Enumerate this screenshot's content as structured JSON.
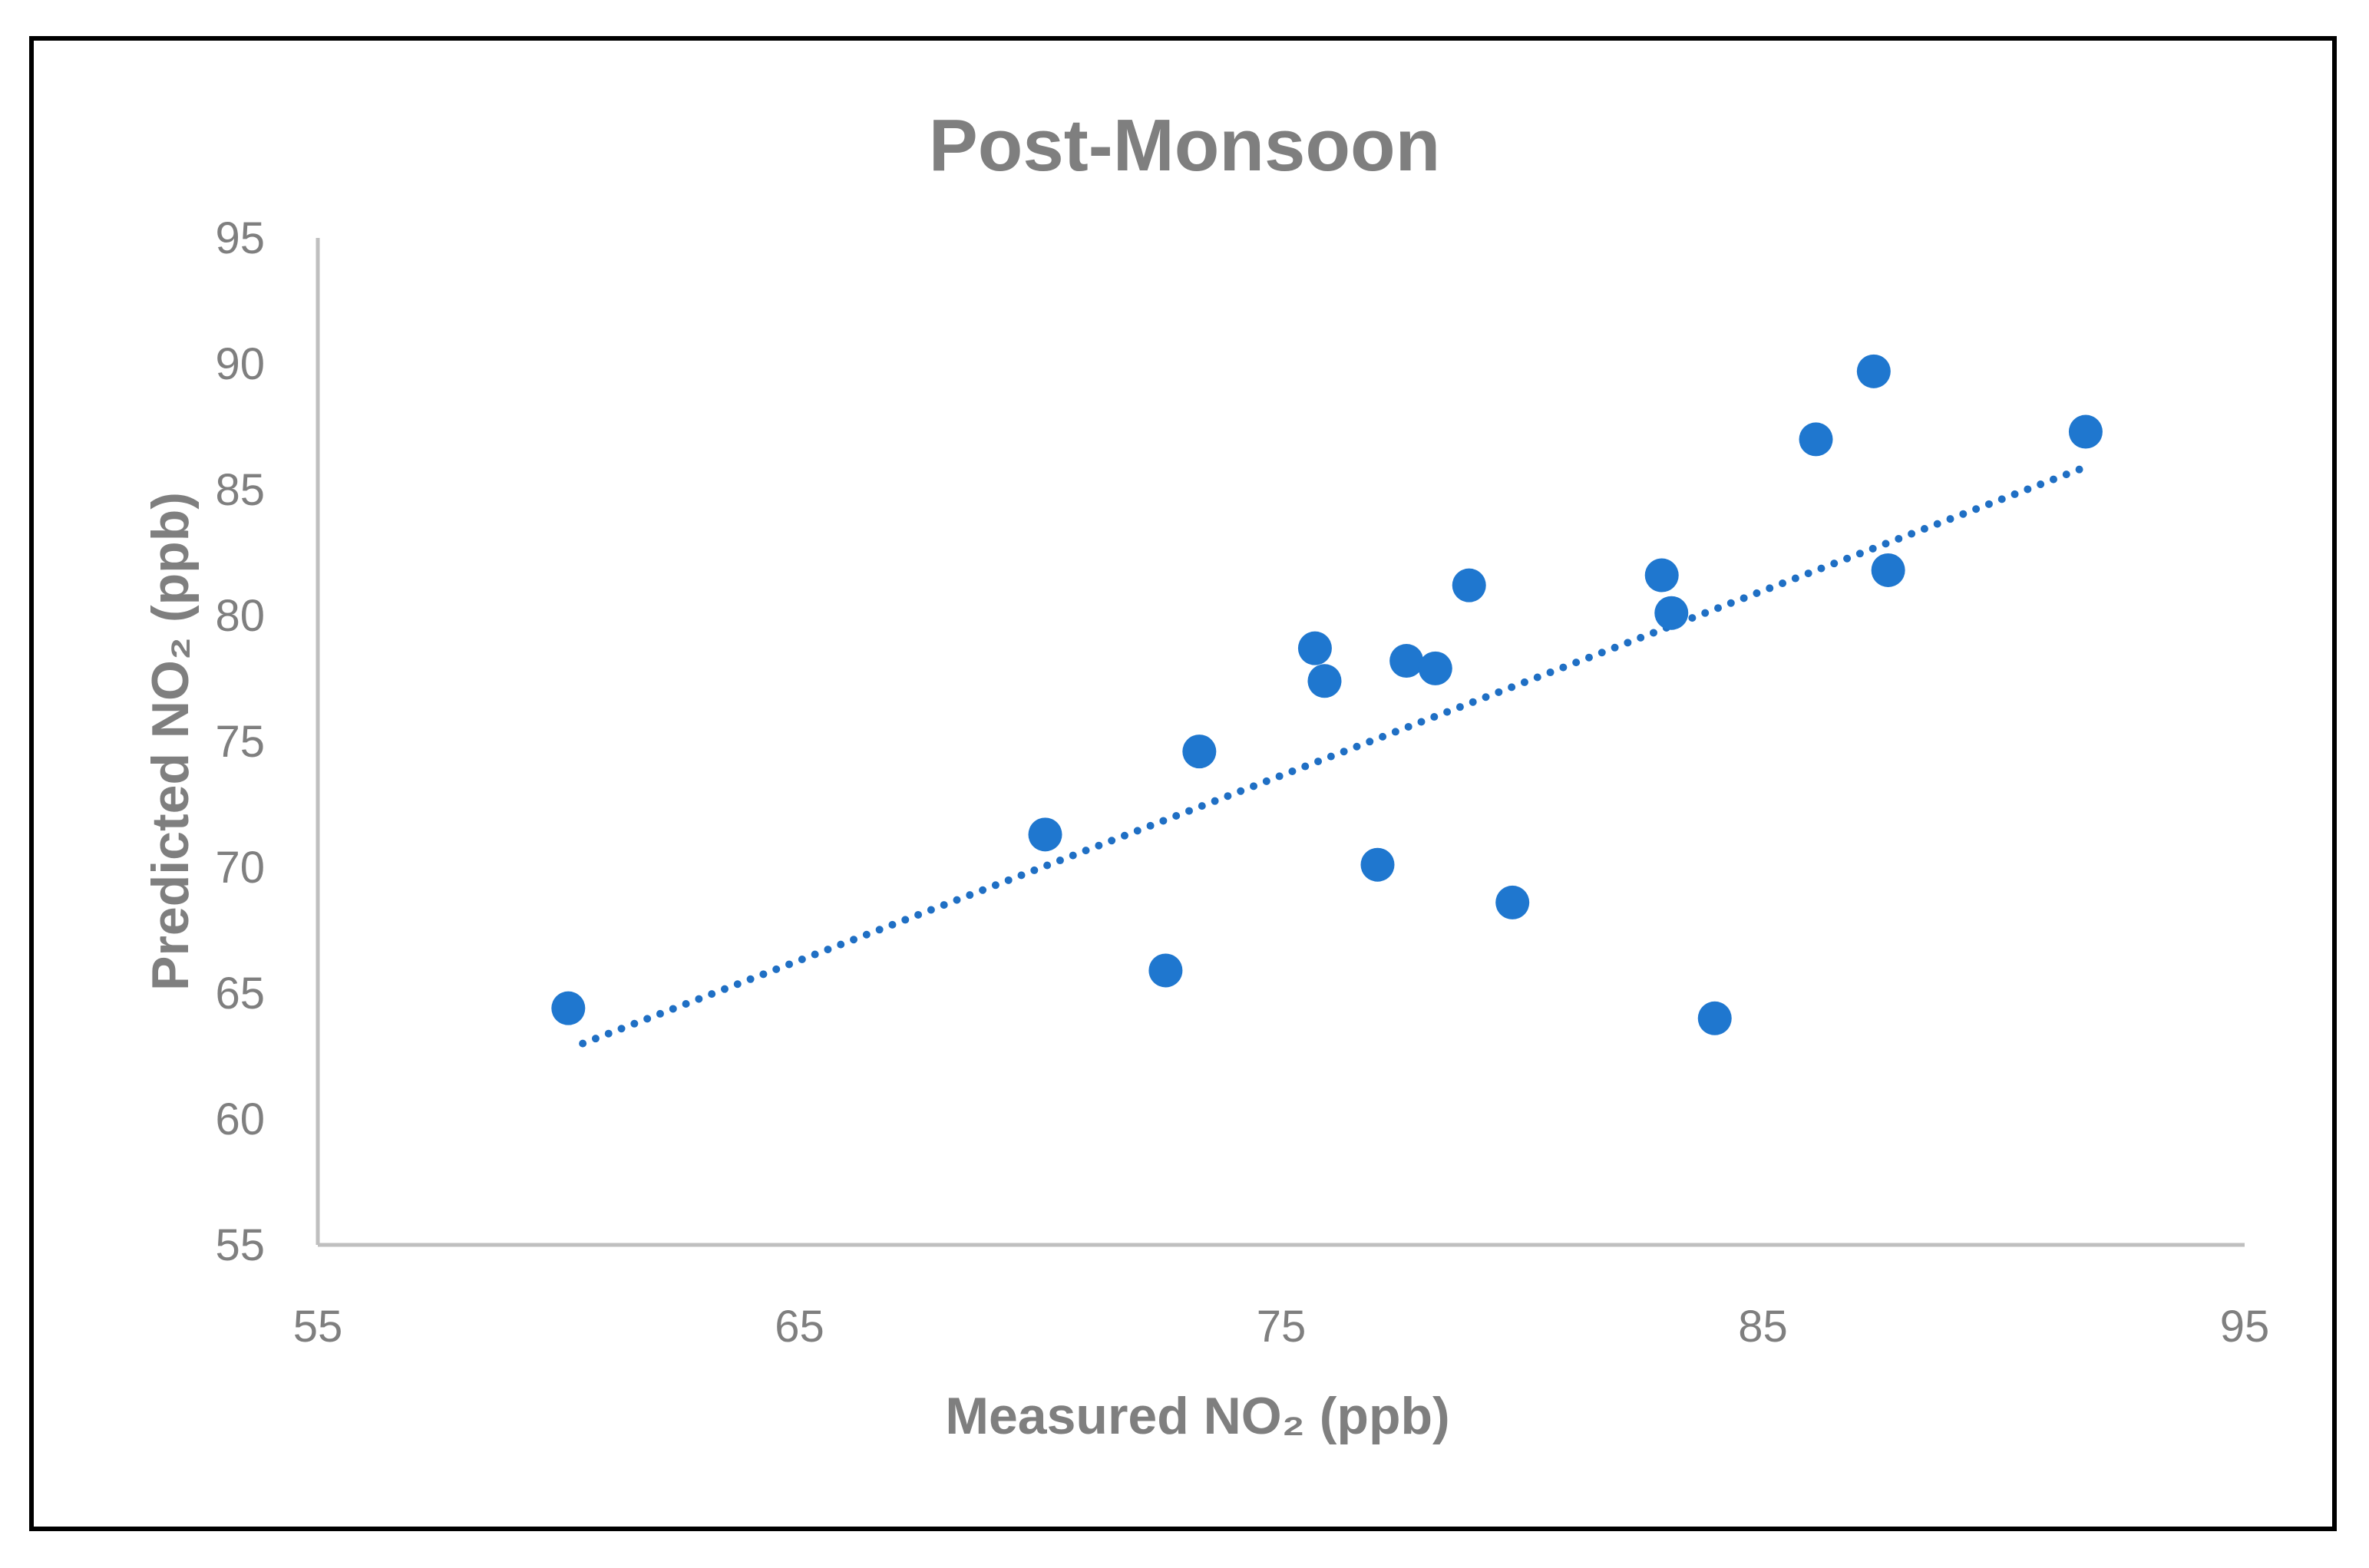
{
  "chart_data": {
    "type": "scatter",
    "title": "Post-Monsoon",
    "xlabel": "Measured NO₂ (ppb)",
    "ylabel": "Predicted NO₂ (ppb)",
    "xlim": [
      55,
      95
    ],
    "ylim": [
      55,
      95
    ],
    "xticks": [
      55,
      65,
      75,
      85,
      95
    ],
    "yticks": [
      55,
      60,
      65,
      70,
      75,
      80,
      85,
      90,
      95
    ],
    "grid": false,
    "legend": "none",
    "series": [
      {
        "name": "Post-Monsoon",
        "x": [
          60.2,
          70.1,
          72.6,
          73.3,
          75.7,
          75.9,
          77.0,
          77.6,
          78.2,
          78.9,
          79.8,
          82.9,
          83.1,
          84.0,
          86.1,
          87.3,
          87.6,
          91.7
        ],
        "y": [
          64.4,
          71.3,
          65.9,
          74.6,
          78.7,
          77.4,
          70.1,
          78.2,
          77.9,
          81.2,
          68.6,
          81.6,
          80.1,
          64.0,
          87.0,
          89.7,
          81.8,
          87.3
        ]
      }
    ],
    "trendline": {
      "type": "linear",
      "style": "dotted",
      "x": [
        60.5,
        91.7
      ],
      "y": [
        63.0,
        85.9
      ]
    },
    "colors": {
      "marker": "#1f77cf",
      "trendline": "#1f6fc4",
      "axis": "#bfbfbf",
      "text": "#7f7f7f"
    }
  }
}
